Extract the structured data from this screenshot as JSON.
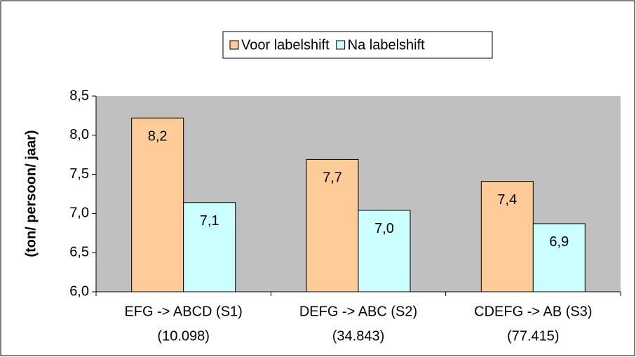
{
  "chart_data": {
    "type": "bar",
    "y_label": "(ton/ persoon/ jaar)",
    "categories": [
      [
        "EFG -> ABCD (S1)",
        "(10.098)"
      ],
      [
        "DEFG -> ABC (S2)",
        "(34.843)"
      ],
      [
        "CDEFG -> AB (S3)",
        "(77.415)"
      ]
    ],
    "series": [
      {
        "name": "Voor labelshift",
        "color": "#ffcc99",
        "values": [
          8.22,
          7.69,
          7.41
        ],
        "value_labels": [
          "8,2",
          "7,7",
          "7,4"
        ]
      },
      {
        "name": "Na labelshift",
        "color": "#ccffff",
        "values": [
          7.14,
          7.04,
          6.87
        ],
        "value_labels": [
          "7,1",
          "7,0",
          "6,9"
        ]
      }
    ],
    "ylim": [
      6.0,
      8.5
    ],
    "yticks": [
      {
        "value": 6.0,
        "label": "6,0"
      },
      {
        "value": 6.5,
        "label": "6,5"
      },
      {
        "value": 7.0,
        "label": "7,0"
      },
      {
        "value": 7.5,
        "label": "7,5"
      },
      {
        "value": 8.0,
        "label": "8,0"
      },
      {
        "value": 8.5,
        "label": "8,5"
      }
    ],
    "plot_background": "#c0c0c0",
    "grid": false,
    "legend": "top"
  }
}
